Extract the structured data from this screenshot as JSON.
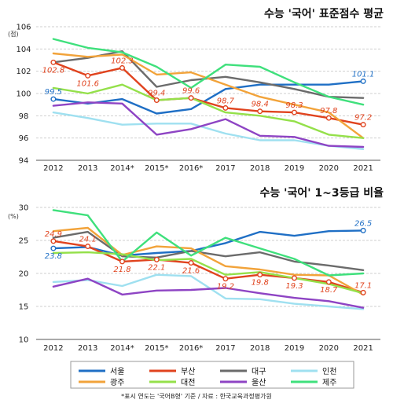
{
  "chart_data": [
    {
      "type": "line",
      "title": "수능 '국어' 표준점수 평균",
      "ylabel_unit": "(점)",
      "x": [
        "2012",
        "2013",
        "2014*",
        "2015*",
        "2016*",
        "2017",
        "2018",
        "2019",
        "2020",
        "2021"
      ],
      "yticks": [
        94,
        96,
        98,
        100,
        102,
        104,
        106
      ],
      "ylim": [
        94,
        106
      ],
      "grid": "horizontal",
      "series": [
        {
          "name": "서울",
          "color": "#1f6fc5",
          "values": [
            99.5,
            99.1,
            99.5,
            98.2,
            98.6,
            100.4,
            100.8,
            100.8,
            100.8,
            101.1
          ]
        },
        {
          "name": "부산",
          "color": "#e0431e",
          "values": [
            102.8,
            101.6,
            102.3,
            99.4,
            99.6,
            98.7,
            98.4,
            98.3,
            97.8,
            97.2
          ]
        },
        {
          "name": "대구",
          "color": "#6b6b6b",
          "values": [
            102.8,
            103.2,
            103.8,
            100.6,
            101.2,
            101.5,
            101.0,
            100.4,
            99.7,
            99.6
          ]
        },
        {
          "name": "인천",
          "color": "#9fe0f0",
          "values": [
            98.3,
            97.8,
            97.2,
            97.3,
            97.3,
            96.4,
            95.8,
            95.8,
            95.3,
            95.0
          ]
        },
        {
          "name": "광주",
          "color": "#f2a33a",
          "values": [
            103.6,
            103.3,
            103.5,
            101.7,
            101.9,
            100.8,
            99.7,
            99.0,
            98.3,
            96.0
          ]
        },
        {
          "name": "대전",
          "color": "#94e04a",
          "values": [
            100.5,
            100.0,
            100.8,
            99.4,
            99.6,
            98.3,
            98.0,
            97.5,
            96.3,
            96.0
          ]
        },
        {
          "name": "울산",
          "color": "#8e44c4",
          "values": [
            98.9,
            99.2,
            99.1,
            96.3,
            96.8,
            97.7,
            96.2,
            96.1,
            95.3,
            95.2
          ]
        },
        {
          "name": "제주",
          "color": "#3fe07c",
          "values": [
            104.9,
            104.1,
            103.7,
            102.4,
            100.5,
            102.6,
            102.4,
            101.0,
            99.7,
            99.0
          ]
        }
      ],
      "data_labels": [
        {
          "series": "서울",
          "index": 0,
          "text": "99.5",
          "side": "above"
        },
        {
          "series": "서울",
          "index": 9,
          "text": "101.1",
          "side": "above"
        },
        {
          "series": "부산",
          "index": 0,
          "text": "102.8",
          "side": "below"
        },
        {
          "series": "부산",
          "index": 1,
          "text": "101.6",
          "side": "below"
        },
        {
          "series": "부산",
          "index": 2,
          "text": "102.3",
          "side": "above"
        },
        {
          "series": "부산",
          "index": 3,
          "text": "99.4",
          "side": "above"
        },
        {
          "series": "부산",
          "index": 4,
          "text": "99.6",
          "side": "above"
        },
        {
          "series": "부산",
          "index": 5,
          "text": "98.7",
          "side": "above"
        },
        {
          "series": "부산",
          "index": 6,
          "text": "98.4",
          "side": "above"
        },
        {
          "series": "부산",
          "index": 7,
          "text": "98.3",
          "side": "above"
        },
        {
          "series": "부산",
          "index": 8,
          "text": "97.8",
          "side": "above"
        },
        {
          "series": "부산",
          "index": 9,
          "text": "97.2",
          "side": "above"
        }
      ]
    },
    {
      "type": "line",
      "title": "수능 '국어' 1~3등급 비율",
      "ylabel_unit": "(%)",
      "x": [
        "2012",
        "2013",
        "2014*",
        "2015*",
        "2016*",
        "2017",
        "2018",
        "2019",
        "2020",
        "2021"
      ],
      "yticks": [
        10,
        15,
        20,
        25,
        30
      ],
      "ylim": [
        10,
        30
      ],
      "grid": "horizontal",
      "series": [
        {
          "name": "서울",
          "color": "#1f6fc5",
          "values": [
            23.8,
            24.0,
            22.7,
            23.1,
            23.4,
            24.6,
            26.3,
            25.7,
            26.4,
            26.5
          ]
        },
        {
          "name": "부산",
          "color": "#e0431e",
          "values": [
            24.9,
            24.1,
            21.8,
            22.1,
            21.6,
            19.2,
            19.8,
            19.3,
            18.7,
            17.1
          ]
        },
        {
          "name": "대구",
          "color": "#6b6b6b",
          "values": [
            25.4,
            26.3,
            22.6,
            22.4,
            23.4,
            22.6,
            23.2,
            21.8,
            21.2,
            20.5
          ]
        },
        {
          "name": "인천",
          "color": "#9fe0f0",
          "values": [
            18.7,
            19.0,
            18.1,
            19.8,
            19.6,
            16.2,
            16.1,
            15.4,
            15.0,
            14.6
          ]
        },
        {
          "name": "광주",
          "color": "#f2a33a",
          "values": [
            26.4,
            26.9,
            22.8,
            24.1,
            23.8,
            21.1,
            20.6,
            19.8,
            19.7,
            16.8
          ]
        },
        {
          "name": "대전",
          "color": "#94e04a",
          "values": [
            23.1,
            23.2,
            22.9,
            22.0,
            22.2,
            19.8,
            20.2,
            19.3,
            18.4,
            17.0
          ]
        },
        {
          "name": "울산",
          "color": "#8e44c4",
          "values": [
            18.0,
            19.2,
            16.8,
            17.4,
            17.5,
            17.8,
            17.0,
            16.3,
            15.8,
            14.8
          ]
        },
        {
          "name": "제주",
          "color": "#3fe07c",
          "values": [
            29.6,
            28.8,
            21.8,
            26.2,
            22.7,
            25.4,
            23.8,
            22.2,
            19.7,
            20.0
          ]
        }
      ],
      "data_labels": [
        {
          "series": "서울",
          "index": 0,
          "text": "23.8",
          "side": "below"
        },
        {
          "series": "서울",
          "index": 9,
          "text": "26.5",
          "side": "above"
        },
        {
          "series": "부산",
          "index": 0,
          "text": "24.9",
          "side": "above"
        },
        {
          "series": "부산",
          "index": 1,
          "text": "24.1",
          "side": "above"
        },
        {
          "series": "부산",
          "index": 2,
          "text": "21.8",
          "side": "below"
        },
        {
          "series": "부산",
          "index": 3,
          "text": "22.1",
          "side": "below"
        },
        {
          "series": "부산",
          "index": 4,
          "text": "21.6",
          "side": "below"
        },
        {
          "series": "부산",
          "index": 5,
          "text": "19.2",
          "side": "below"
        },
        {
          "series": "부산",
          "index": 6,
          "text": "19.8",
          "side": "below"
        },
        {
          "series": "부산",
          "index": 7,
          "text": "19.3",
          "side": "below"
        },
        {
          "series": "부산",
          "index": 8,
          "text": "18.7",
          "side": "below"
        },
        {
          "series": "부산",
          "index": 9,
          "text": "17.1",
          "side": "above"
        }
      ]
    }
  ],
  "legend": {
    "items": [
      "서울",
      "부산",
      "대구",
      "인천",
      "광주",
      "대전",
      "울산",
      "제주"
    ],
    "placement": "bottom"
  },
  "footnote": "*표시 연도는 '국어B형' 기준   /   자료 : 한국교육과정평가원",
  "label_color": "#e0431e",
  "highlight_label_color": "#1f6fc5"
}
